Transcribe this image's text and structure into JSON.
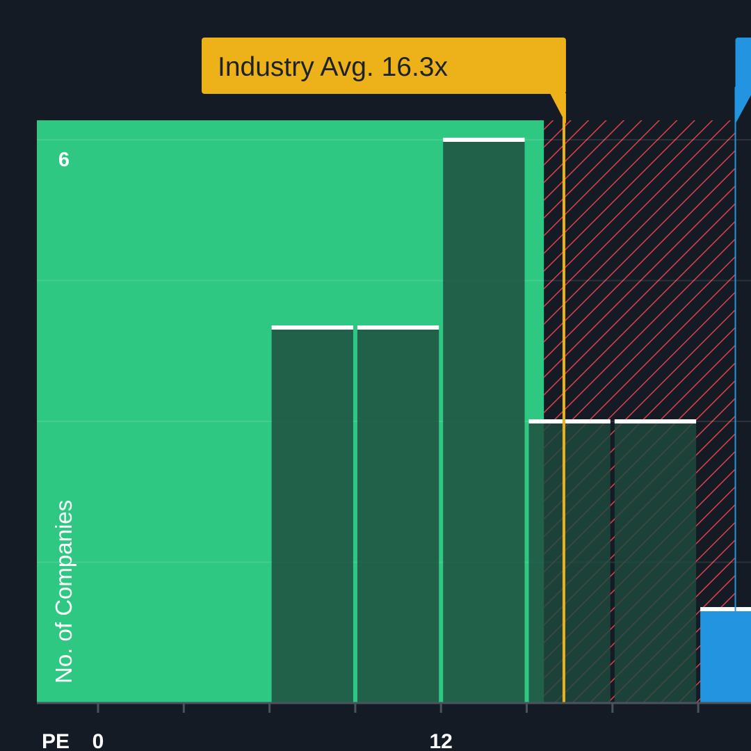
{
  "chart_data": {
    "type": "bar",
    "xlabel": "PE",
    "ylabel": "No. of Companies",
    "x_ticks": [
      {
        "value": 0,
        "label": "0"
      },
      {
        "value": 12,
        "label": "12"
      }
    ],
    "y_ticks": [
      {
        "value": 6,
        "label": "6"
      }
    ],
    "ylim": [
      0,
      6.15
    ],
    "xlim": [
      -2.1,
      22.7
    ],
    "bin_width": 3,
    "grid": true,
    "bins": [
      {
        "start": 6,
        "end": 9,
        "value": 4
      },
      {
        "start": 9,
        "end": 12,
        "value": 4
      },
      {
        "start": 12,
        "end": 15,
        "value": 6
      },
      {
        "start": 15,
        "end": 18,
        "value": 3
      },
      {
        "start": 18,
        "end": 21,
        "value": 3
      }
    ],
    "highlight_bin": {
      "start": 21,
      "end": 24,
      "value": 1
    },
    "undervalued_zone_max": 15.6,
    "industry_avg": {
      "value": 16.3,
      "label": "Industry Avg. 16.3x"
    },
    "company_marker": {
      "value": 22.3
    },
    "colors": {
      "background": "#151b24",
      "green_zone": "#2ec882",
      "bar_fill": "#1f4a3e",
      "bar_top": "#ffffff",
      "hatch": "#e0414a",
      "industry_avg": "#edb21a",
      "industry_avg_text": "#1e2329",
      "company": "#2394e0",
      "axis": "#4a535e",
      "tick_text": "#ffffff"
    }
  }
}
